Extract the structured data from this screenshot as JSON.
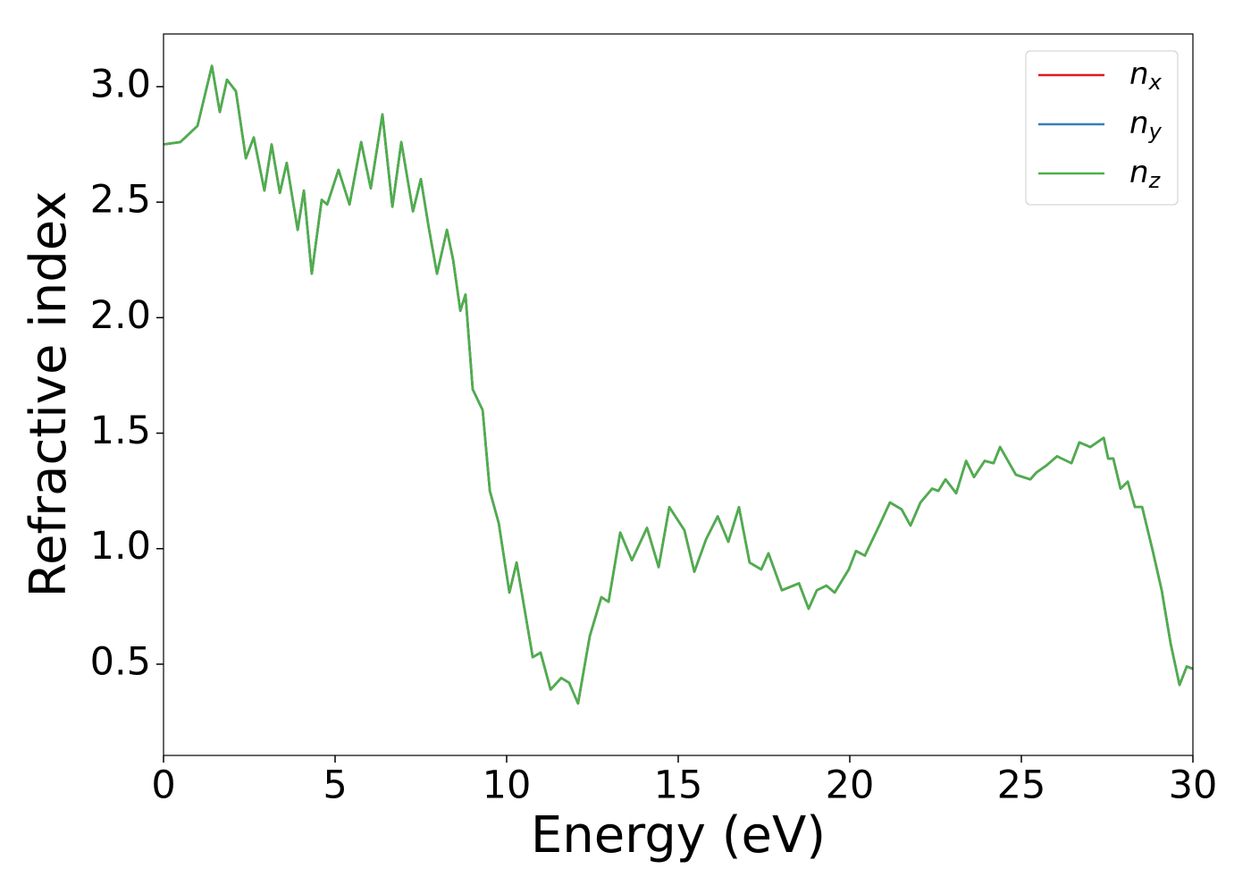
{
  "chart_data": {
    "type": "line",
    "xlabel": "Energy (eV)",
    "ylabel": "Refractive index",
    "x": [
      0,
      0.49,
      0.99,
      1.41,
      1.64,
      1.85,
      2.11,
      2.4,
      2.63,
      2.94,
      3.15,
      3.39,
      3.59,
      3.91,
      4.09,
      4.32,
      4.61,
      4.77,
      5.1,
      5.42,
      5.76,
      6.04,
      6.38,
      6.67,
      6.93,
      7.27,
      7.5,
      7.73,
      7.97,
      8.26,
      8.44,
      8.65,
      8.8,
      9.01,
      9.3,
      9.51,
      9.77,
      10.08,
      10.29,
      10.76,
      10.99,
      11.28,
      11.59,
      11.82,
      12.08,
      12.42,
      12.76,
      12.97,
      13.31,
      13.65,
      14.09,
      14.43,
      14.74,
      15.18,
      15.47,
      15.81,
      16.15,
      16.46,
      16.77,
      17.08,
      17.42,
      17.63,
      18.02,
      18.52,
      18.8,
      19.04,
      19.32,
      19.56,
      19.97,
      20.18,
      20.44,
      20.89,
      21.17,
      21.51,
      21.77,
      22.06,
      22.4,
      22.58,
      22.79,
      23.1,
      23.39,
      23.62,
      23.93,
      24.19,
      24.38,
      24.61,
      24.84,
      25.26,
      25.44,
      25.73,
      26.04,
      26.46,
      26.69,
      27.01,
      27.4,
      27.53,
      27.68,
      27.89,
      28.1,
      28.31,
      28.52,
      28.83,
      29.09,
      29.35,
      29.61,
      29.82,
      30
    ],
    "series": [
      {
        "name": "n_x",
        "color": "#e41a1c",
        "values": [
          2.75,
          2.76,
          2.83,
          3.09,
          2.89,
          3.03,
          2.98,
          2.69,
          2.78,
          2.55,
          2.75,
          2.54,
          2.67,
          2.38,
          2.55,
          2.19,
          2.51,
          2.49,
          2.64,
          2.49,
          2.76,
          2.56,
          2.88,
          2.48,
          2.76,
          2.46,
          2.6,
          2.39,
          2.19,
          2.38,
          2.25,
          2.03,
          2.1,
          1.69,
          1.6,
          1.25,
          1.11,
          0.81,
          0.94,
          0.53,
          0.55,
          0.39,
          0.44,
          0.42,
          0.33,
          0.62,
          0.79,
          0.77,
          1.07,
          0.95,
          1.09,
          0.92,
          1.18,
          1.08,
          0.9,
          1.04,
          1.14,
          1.03,
          1.18,
          0.94,
          0.91,
          0.98,
          0.82,
          0.85,
          0.74,
          0.82,
          0.84,
          0.81,
          0.91,
          0.99,
          0.97,
          1.11,
          1.2,
          1.17,
          1.1,
          1.2,
          1.26,
          1.25,
          1.3,
          1.24,
          1.38,
          1.31,
          1.38,
          1.37,
          1.44,
          1.38,
          1.32,
          1.3,
          1.33,
          1.36,
          1.4,
          1.37,
          1.46,
          1.44,
          1.48,
          1.39,
          1.39,
          1.26,
          1.29,
          1.18,
          1.18,
          0.99,
          0.82,
          0.59,
          0.41,
          0.49,
          0.48
        ]
      },
      {
        "name": "n_y",
        "color": "#377eb8",
        "values": [
          2.75,
          2.76,
          2.83,
          3.09,
          2.89,
          3.03,
          2.98,
          2.69,
          2.78,
          2.55,
          2.75,
          2.54,
          2.67,
          2.38,
          2.55,
          2.19,
          2.51,
          2.49,
          2.64,
          2.49,
          2.76,
          2.56,
          2.88,
          2.48,
          2.76,
          2.46,
          2.6,
          2.39,
          2.19,
          2.38,
          2.25,
          2.03,
          2.1,
          1.69,
          1.6,
          1.25,
          1.11,
          0.81,
          0.94,
          0.53,
          0.55,
          0.39,
          0.44,
          0.42,
          0.33,
          0.62,
          0.79,
          0.77,
          1.07,
          0.95,
          1.09,
          0.92,
          1.18,
          1.08,
          0.9,
          1.04,
          1.14,
          1.03,
          1.18,
          0.94,
          0.91,
          0.98,
          0.82,
          0.85,
          0.74,
          0.82,
          0.84,
          0.81,
          0.91,
          0.99,
          0.97,
          1.11,
          1.2,
          1.17,
          1.1,
          1.2,
          1.26,
          1.25,
          1.3,
          1.24,
          1.38,
          1.31,
          1.38,
          1.37,
          1.44,
          1.38,
          1.32,
          1.3,
          1.33,
          1.36,
          1.4,
          1.37,
          1.46,
          1.44,
          1.48,
          1.39,
          1.39,
          1.26,
          1.29,
          1.18,
          1.18,
          0.99,
          0.82,
          0.59,
          0.41,
          0.49,
          0.48
        ]
      },
      {
        "name": "n_z",
        "color": "#4daf4a",
        "values": [
          2.75,
          2.76,
          2.83,
          3.09,
          2.89,
          3.03,
          2.98,
          2.69,
          2.78,
          2.55,
          2.75,
          2.54,
          2.67,
          2.38,
          2.55,
          2.19,
          2.51,
          2.49,
          2.64,
          2.49,
          2.76,
          2.56,
          2.88,
          2.48,
          2.76,
          2.46,
          2.6,
          2.39,
          2.19,
          2.38,
          2.25,
          2.03,
          2.1,
          1.69,
          1.6,
          1.25,
          1.11,
          0.81,
          0.94,
          0.53,
          0.55,
          0.39,
          0.44,
          0.42,
          0.33,
          0.62,
          0.79,
          0.77,
          1.07,
          0.95,
          1.09,
          0.92,
          1.18,
          1.08,
          0.9,
          1.04,
          1.14,
          1.03,
          1.18,
          0.94,
          0.91,
          0.98,
          0.82,
          0.85,
          0.74,
          0.82,
          0.84,
          0.81,
          0.91,
          0.99,
          0.97,
          1.11,
          1.2,
          1.17,
          1.1,
          1.2,
          1.26,
          1.25,
          1.3,
          1.24,
          1.38,
          1.31,
          1.38,
          1.37,
          1.44,
          1.38,
          1.32,
          1.3,
          1.33,
          1.36,
          1.4,
          1.37,
          1.46,
          1.44,
          1.48,
          1.39,
          1.39,
          1.26,
          1.29,
          1.18,
          1.18,
          0.99,
          0.82,
          0.59,
          0.41,
          0.49,
          0.48
        ]
      }
    ],
    "xlim": [
      0,
      30
    ],
    "xticks": [
      0,
      5,
      10,
      15,
      20,
      25,
      30
    ],
    "ylim": [
      0.105,
      3.228
    ],
    "yticks": [
      0.5,
      {
        "value": 1,
        "label": "1.0"
      },
      1.5,
      {
        "value": 2,
        "label": "2.0"
      },
      2.5,
      {
        "value": 3,
        "label": "3.0"
      }
    ],
    "grid": false,
    "legend": "upper right"
  }
}
